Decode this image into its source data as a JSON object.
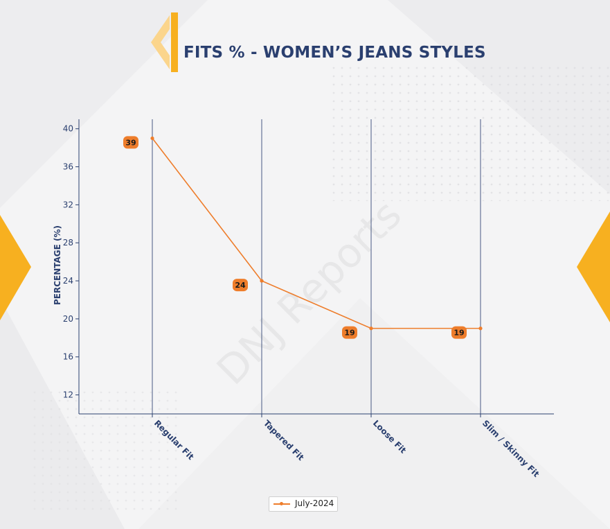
{
  "header": {
    "title": "FITS % - WOMEN’S JEANS STYLES"
  },
  "watermark": "DNJ Reports",
  "colors": {
    "accent": "#ee7d2b",
    "title": "#2a3f6f",
    "axis": "#2a3f6f",
    "gold": "#f7b020"
  },
  "chart_data": {
    "type": "line",
    "categories": [
      "Regular Fit",
      "Tapered Fit",
      "Loose Fit",
      "Slim / Skinny Fit"
    ],
    "series": [
      {
        "name": "July-2024",
        "values": [
          39,
          24,
          19,
          19
        ]
      }
    ],
    "data_labels": [
      "39",
      "24",
      "19",
      "19"
    ],
    "ylabel": "PERCENTAGE (%)",
    "yticks": [
      12,
      16,
      20,
      24,
      28,
      32,
      36,
      40
    ],
    "ylim": [
      10,
      41
    ],
    "grid": "vertical",
    "legend": "bottom-center"
  }
}
